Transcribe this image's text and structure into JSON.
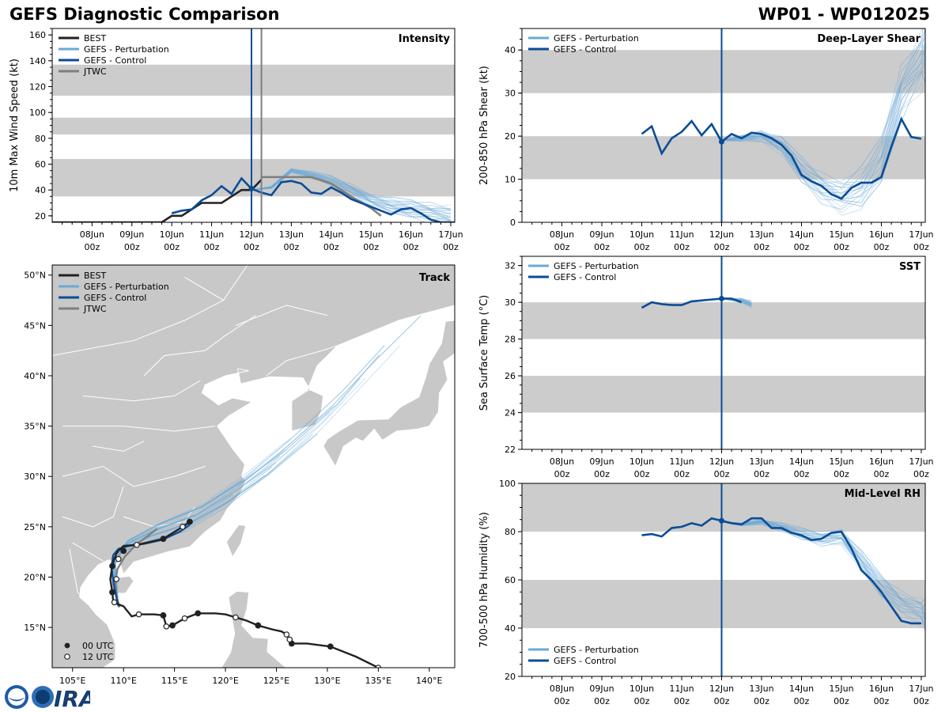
{
  "header": {
    "left_title": "GEFS Diagnostic Comparison",
    "right_title": "WP01 - WP012025"
  },
  "colors": {
    "best": "#222222",
    "pert": "#6aa9d6",
    "ctrl": "#0b4c96",
    "jtwc": "#7f7f7f",
    "band": "#cccccc",
    "land": "#c8c8c8",
    "vline": "#0b4c96",
    "jtwc_vline": "#7f7f7f"
  },
  "time_axis": {
    "tick_labels": [
      "08Jun\n00z",
      "09Jun\n00z",
      "10Jun\n00z",
      "11Jun\n00z",
      "12Jun\n00z",
      "13Jun\n00z",
      "14Jun\n00z",
      "15Jun\n00z",
      "16Jun\n00z",
      "17Jun\n00z"
    ],
    "tick_days": [
      1,
      2,
      3,
      4,
      5,
      6,
      7,
      8,
      9,
      10
    ],
    "range_days": [
      0,
      10.1
    ],
    "init_day": 5.0,
    "jtwc_init_day": 5.25
  },
  "chart_data": [
    {
      "id": "intensity",
      "type": "line",
      "title": "Intensity",
      "ylabel": "10m Max Wind Speed (kt)",
      "ylim": [
        15,
        165
      ],
      "yticks": [
        20,
        40,
        60,
        80,
        100,
        120,
        140,
        160
      ],
      "bands": [
        [
          35,
          64
        ],
        [
          83,
          96
        ],
        [
          113,
          137
        ]
      ],
      "legend": [
        "BEST",
        "GEFS - Perturbation",
        "GEFS - Control",
        "JTWC"
      ],
      "series": [
        {
          "name": "BEST",
          "x": [
            0,
            2.5,
            2.75,
            3.0,
            3.25,
            3.5,
            3.75,
            4.0,
            4.25,
            4.5,
            4.75,
            5.0,
            5.25
          ],
          "y": [
            15,
            15,
            15,
            20,
            20,
            25,
            30,
            30,
            30,
            35,
            40,
            40,
            48
          ]
        },
        {
          "name": "GEFS - Control",
          "x": [
            3.0,
            3.25,
            3.5,
            3.75,
            4.0,
            4.25,
            4.5,
            4.75,
            5.0,
            5.25,
            5.5,
            5.75,
            6.0,
            6.25,
            6.5,
            6.75,
            7.0,
            7.25,
            7.5,
            7.75,
            8.0,
            8.25,
            8.5,
            8.75,
            9.0,
            9.25,
            9.5,
            9.75,
            10.0,
            10.1
          ],
          "y": [
            22,
            24,
            25,
            32,
            36,
            43,
            37,
            49,
            41,
            38,
            36,
            46,
            47,
            45,
            38,
            37,
            42,
            38,
            33,
            30,
            27,
            24,
            21,
            25,
            26,
            22,
            17,
            15,
            15,
            15
          ]
        },
        {
          "name": "JTWC",
          "x": [
            5.25,
            6.0,
            6.5,
            7.0,
            7.5,
            8.0,
            8.25
          ],
          "y": [
            50,
            50,
            50,
            45,
            35,
            26,
            20
          ]
        },
        {
          "name": "GEFS - Perturbation",
          "x": [
            5.0,
            5.5,
            6.0,
            6.5,
            7.0,
            7.5,
            8.0,
            8.5,
            9.0,
            9.5,
            10.0
          ],
          "y": [
            40,
            42,
            55,
            52,
            47,
            40,
            32,
            28,
            25,
            22,
            20
          ],
          "spread": 7
        }
      ]
    },
    {
      "id": "shear",
      "type": "line",
      "title": "Deep-Layer Shear",
      "ylabel": "200-850 hPa Shear (kt)",
      "ylim": [
        0,
        45
      ],
      "yticks": [
        0,
        10,
        20,
        30,
        40
      ],
      "bands": [
        [
          10,
          20
        ],
        [
          30,
          40
        ]
      ],
      "legend": [
        "GEFS - Perturbation",
        "GEFS - Control"
      ],
      "series": [
        {
          "name": "GEFS - Control",
          "x": [
            3.0,
            3.25,
            3.5,
            3.75,
            4.0,
            4.25,
            4.5,
            4.75,
            5.0,
            5.25,
            5.5,
            5.75,
            6.0,
            6.25,
            6.5,
            6.75,
            7.0,
            7.25,
            7.5,
            7.75,
            8.0,
            8.25,
            8.5,
            8.75,
            9.0,
            9.25,
            9.5,
            9.75,
            10.0
          ],
          "y": [
            20.5,
            22.3,
            16.0,
            19.5,
            21.0,
            23.5,
            20.2,
            22.8,
            18.7,
            20.5,
            19.5,
            20.8,
            20.5,
            19.5,
            18.0,
            15.5,
            11.0,
            9.5,
            8.5,
            6.5,
            5.5,
            8.0,
            9.2,
            9.2,
            10.5,
            17.5,
            24.0,
            19.8,
            19.4
          ]
        },
        {
          "name": "GEFS - Perturbation",
          "x": [
            5.0,
            5.5,
            6.0,
            6.5,
            7.0,
            7.5,
            8.0,
            8.5,
            9.0,
            9.5,
            10.0,
            10.1
          ],
          "y": [
            19,
            19.5,
            20,
            18,
            12,
            8,
            6,
            8,
            14,
            30,
            38,
            40
          ],
          "spread": 6
        }
      ]
    },
    {
      "id": "sst",
      "type": "line",
      "title": "SST",
      "ylabel": "Sea Surface Temp (°C)",
      "ylim": [
        22,
        32.5
      ],
      "yticks": [
        22,
        24,
        26,
        28,
        30,
        32
      ],
      "bands": [
        [
          24,
          26
        ],
        [
          28,
          30
        ]
      ],
      "legend": [
        "GEFS - Perturbation",
        "GEFS - Control"
      ],
      "series": [
        {
          "name": "GEFS - Control",
          "x": [
            3.0,
            3.25,
            3.5,
            3.75,
            4.0,
            4.25,
            4.5,
            4.75,
            5.0,
            5.25,
            5.5
          ],
          "y": [
            29.7,
            30.0,
            29.9,
            29.85,
            29.85,
            30.05,
            30.1,
            30.15,
            30.2,
            30.2,
            30.0
          ]
        },
        {
          "name": "GEFS - Perturbation",
          "x": [
            5.0,
            5.25,
            5.5,
            5.75
          ],
          "y": [
            30.2,
            30.15,
            30.1,
            29.9
          ],
          "spread": 0.15
        }
      ]
    },
    {
      "id": "rh",
      "type": "line",
      "title": "Mid-Level RH",
      "ylabel": "700-500 hPa Humidity (%)",
      "ylim": [
        20,
        100
      ],
      "yticks": [
        20,
        40,
        60,
        80,
        100
      ],
      "bands": [
        [
          40,
          60
        ],
        [
          80,
          100
        ]
      ],
      "legend": [
        "GEFS - Perturbation",
        "GEFS - Control"
      ],
      "series": [
        {
          "name": "GEFS - Control",
          "x": [
            3.0,
            3.25,
            3.5,
            3.75,
            4.0,
            4.25,
            4.5,
            4.75,
            5.0,
            5.25,
            5.5,
            5.75,
            6.0,
            6.25,
            6.5,
            6.75,
            7.0,
            7.25,
            7.5,
            7.75,
            8.0,
            8.25,
            8.5,
            8.75,
            9.0,
            9.25,
            9.5,
            9.75,
            10.0
          ],
          "y": [
            78.5,
            79,
            78,
            81.5,
            82,
            83.5,
            82.5,
            85.5,
            84.5,
            83.5,
            83,
            85.5,
            85.5,
            81.5,
            81.5,
            79.5,
            78.5,
            76.5,
            77,
            79.5,
            80,
            73,
            64,
            60,
            55,
            49,
            43,
            42,
            42
          ]
        },
        {
          "name": "GEFS - Perturbation",
          "x": [
            5.0,
            5.5,
            6.0,
            6.5,
            7.0,
            7.5,
            8.0,
            8.5,
            9.0,
            9.5,
            10.0,
            10.1
          ],
          "y": [
            84,
            83,
            84,
            82,
            79,
            77,
            78,
            68,
            57,
            50,
            47,
            45
          ],
          "spread": 5
        }
      ]
    },
    {
      "id": "track",
      "type": "scatter",
      "title": "Track",
      "xlim": [
        103,
        142.5
      ],
      "ylim": [
        11,
        51
      ],
      "xticks": [
        105,
        110,
        115,
        120,
        125,
        130,
        135,
        140
      ],
      "xtick_labels": [
        "105°E",
        "110°E",
        "115°E",
        "120°E",
        "125°E",
        "130°E",
        "135°E",
        "140°E"
      ],
      "yticks": [
        15,
        20,
        25,
        30,
        35,
        40,
        45,
        50
      ],
      "ytick_labels": [
        "15°N",
        "20°N",
        "25°N",
        "30°N",
        "35°N",
        "40°N",
        "45°N",
        "50°N"
      ],
      "legend": [
        "BEST",
        "GEFS - Perturbation",
        "GEFS - Control",
        "JTWC"
      ],
      "marker_legend": [
        "00 UTC",
        "12 UTC"
      ],
      "series": [
        {
          "name": "BEST",
          "lon": [
            135.0,
            132.8,
            130.3,
            128.0,
            126.5,
            126.3,
            126.0,
            125.5,
            124.6,
            123.2,
            122.0,
            121.0,
            120.0,
            119.0,
            117.3,
            116.0,
            114.8,
            114.2,
            113.9,
            113.0,
            111.5,
            110.8,
            110.0,
            109.5,
            109.0,
            108.9,
            108.7,
            108.9,
            109.1,
            109.3,
            109.5,
            110.0,
            111.3,
            113.9,
            115.8,
            116.5
          ],
          "lat": [
            11.0,
            12.1,
            13.1,
            13.4,
            13.4,
            13.8,
            14.3,
            14.6,
            14.8,
            15.2,
            15.7,
            16.0,
            16.3,
            16.4,
            16.4,
            15.9,
            15.2,
            15.1,
            16.2,
            16.3,
            16.3,
            16.1,
            17.1,
            17.3,
            17.5,
            18.5,
            19.8,
            21.1,
            21.8,
            22.3,
            22.6,
            23.1,
            23.2,
            23.8,
            25.0,
            25.5
          ]
        },
        {
          "name": "GEFS - Control",
          "lon": [
            109.5,
            109.3,
            109.0,
            108.8,
            109.0,
            109.5,
            110.5,
            112.0,
            113.8,
            115.5,
            116.5
          ],
          "lat": [
            17.1,
            18.0,
            19.5,
            21.0,
            22.2,
            22.8,
            23.1,
            23.3,
            23.7,
            24.5,
            25.2
          ]
        },
        {
          "name": "JTWC",
          "lon": [
            109.6,
            109.3,
            109.2,
            109.4,
            110.1,
            111.2,
            112.4,
            113.3
          ],
          "lat": [
            17.0,
            18.2,
            19.5,
            20.8,
            22.0,
            23.2,
            24.1,
            24.8
          ]
        },
        {
          "name": "GEFS - Perturbation",
          "lon": [
            109.5,
            109.0,
            110.0,
            113.0,
            117.0,
            121.0,
            125.0,
            130.0,
            134.0,
            138.5
          ],
          "lat": [
            17.1,
            21.0,
            23.0,
            24.5,
            26.0,
            28.5,
            31.5,
            36.0,
            40.5,
            45.3
          ]
        }
      ],
      "points_00utc": [
        [
          126.5,
          13.4
        ],
        [
          130.3,
          13.1
        ],
        [
          123.2,
          15.2
        ],
        [
          117.3,
          16.4
        ],
        [
          114.8,
          15.2
        ],
        [
          113.9,
          16.2
        ],
        [
          108.9,
          18.5
        ],
        [
          108.9,
          21.1
        ],
        [
          110.0,
          22.6
        ],
        [
          113.9,
          23.8
        ],
        [
          116.5,
          25.5
        ]
      ],
      "points_12utc": [
        [
          135.0,
          11.0
        ],
        [
          126.3,
          13.8
        ],
        [
          126.0,
          14.3
        ],
        [
          121.0,
          16.0
        ],
        [
          116.0,
          15.9
        ],
        [
          114.2,
          15.1
        ],
        [
          111.5,
          16.3
        ],
        [
          109.1,
          17.5
        ],
        [
          109.3,
          19.8
        ],
        [
          109.5,
          21.8
        ],
        [
          111.3,
          23.2
        ],
        [
          115.8,
          25.0
        ]
      ]
    }
  ]
}
